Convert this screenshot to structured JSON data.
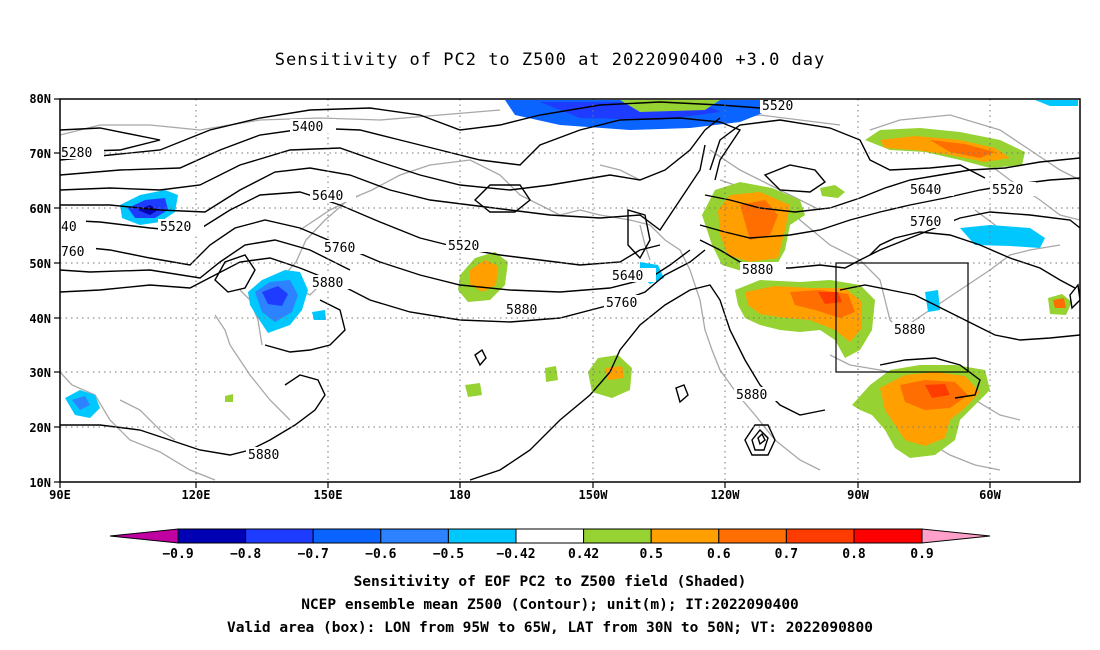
{
  "title": "Sensitivity of PC2 to Z500 at 2022090400 +3.0 day",
  "lat_ticks": [
    "80N",
    "70N",
    "60N",
    "50N",
    "40N",
    "30N",
    "20N",
    "10N"
  ],
  "lon_ticks": [
    "90E",
    "120E",
    "150E",
    "180",
    "150W",
    "120W",
    "90W",
    "60W"
  ],
  "contour_labels": [
    "5280",
    "5400",
    "5520",
    "5520",
    "5520",
    "5640",
    "5640",
    "5640",
    "5760",
    "5760",
    "5760",
    "5880",
    "5880",
    "5880",
    "5880",
    "5880",
    "5880",
    "5520",
    "40",
    "760"
  ],
  "colorbar": {
    "labels": [
      "−0.9",
      "−0.8",
      "−0.7",
      "−0.6",
      "−0.5",
      "−0.42",
      "0.42",
      "0.5",
      "0.6",
      "0.7",
      "0.8",
      "0.9"
    ],
    "colors": [
      "#c000a0",
      "#0000b4",
      "#1e3cff",
      "#0a64ff",
      "#2d82ff",
      "#00c8ff",
      "#ffffff",
      "#96d232",
      "#ffa000",
      "#ff6e00",
      "#ff3c00",
      "#ff0000",
      "#ffa0c8"
    ]
  },
  "captions": {
    "line1": "Sensitivity of EOF PC2 to Z500 field (Shaded)",
    "line2": "NCEP ensemble mean Z500 (Contour); unit(m); IT:2022090400",
    "line3": "Valid area (box): LON from 95W to 65W, LAT from 30N to 50N; VT: 2022090800"
  }
}
